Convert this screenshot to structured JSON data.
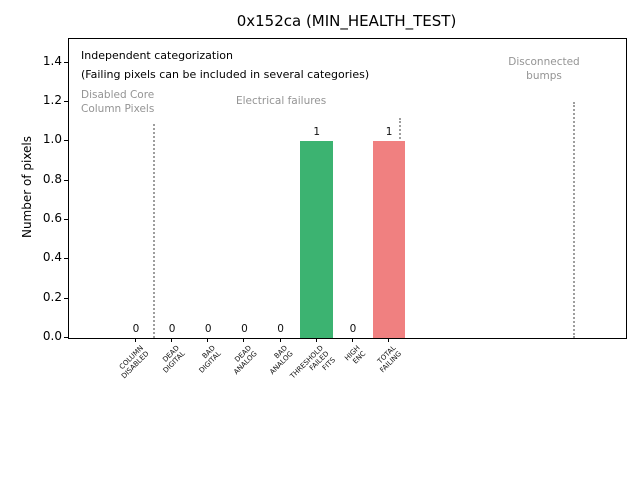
{
  "chart_data": {
    "type": "bar",
    "title": "0x152ca (MIN_HEALTH_TEST)",
    "xlabel": "",
    "ylabel": "Number of pixels",
    "xlim": [
      -1.85,
      13.55
    ],
    "ylim": [
      0,
      1.52
    ],
    "grid": false,
    "legend": null,
    "yticks": [
      0.0,
      0.2,
      0.4,
      0.6,
      0.8,
      1.0,
      1.2,
      1.4
    ],
    "ytick_labels": [
      "0.0",
      "0.2",
      "0.4",
      "0.6",
      "0.8",
      "1.0",
      "1.2",
      "1.4"
    ],
    "categories": [
      "COLUMN\nDISABLED",
      "DEAD\nDIGITAL",
      "BAD\nDIGITAL",
      "DEAD\nANALOG",
      "BAD\nANALOG",
      "THRESHOLD\nFAILED\nFITS",
      "HIGH\nENC",
      "TOTAL\nFAILING"
    ],
    "values": [
      0,
      0,
      0,
      0,
      0,
      1,
      0,
      1
    ],
    "value_labels": [
      "0",
      "0",
      "0",
      "0",
      "0",
      "1",
      "0",
      "1"
    ],
    "bar_colors": [
      null,
      null,
      null,
      null,
      null,
      "#3cb371",
      null,
      "#f08080"
    ],
    "bar_width_units": 0.9,
    "annotations": {
      "independent": "Independent categorization",
      "failing_note": "(Failing pixels can be included in several categories)",
      "group_disabled": "Disabled Core\nColumn Pixels",
      "group_electrical": "Electrical failures",
      "group_bumps": "Disconnected\nbumps"
    },
    "separators": [
      {
        "x": 0.5,
        "ymax": 1.09
      },
      {
        "x": 7.3,
        "ymax": 1.12
      },
      {
        "x": 12.1,
        "ymax": 1.2
      }
    ],
    "colors": {
      "bar_green": "#3cb371",
      "bar_red": "#f08080",
      "annotation_gray": "#949494",
      "separator_gray": "#9e9e9e",
      "axis_black": "#000000"
    }
  }
}
